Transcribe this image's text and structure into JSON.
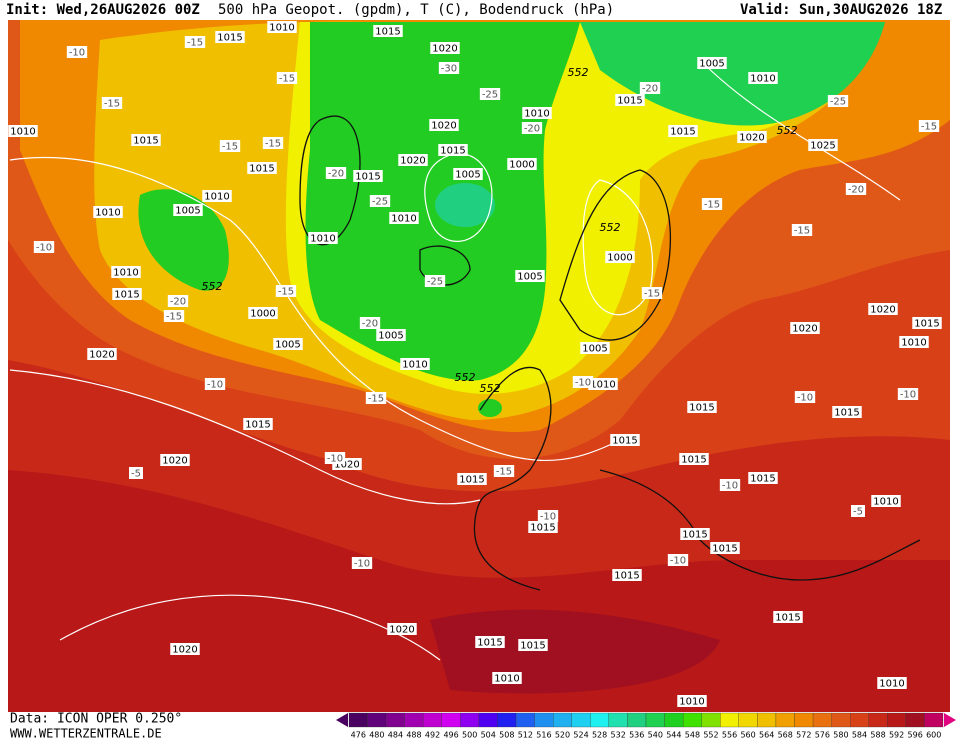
{
  "header": {
    "init": "Init: Wed,26AUG2026 00Z",
    "title": "500 hPa Geopot. (gpdm), T (C), Bodendruck (hPa)",
    "valid": "Valid: Sun,30AUG2026 18Z"
  },
  "footer": {
    "data": "Data: ICON OPER 0.250°",
    "site": "WWW.WETTERZENTRALE.DE"
  },
  "scale": {
    "labels": [
      476,
      480,
      484,
      488,
      492,
      496,
      500,
      504,
      508,
      512,
      516,
      520,
      524,
      528,
      532,
      536,
      540,
      544,
      548,
      552,
      556,
      560,
      564,
      568,
      572,
      576,
      580,
      584,
      588,
      592,
      596,
      600
    ],
    "colors": [
      "#4a0060",
      "#60007a",
      "#800090",
      "#a000b0",
      "#c000d0",
      "#d000f0",
      "#9000f0",
      "#5000f0",
      "#2020f0",
      "#2060f0",
      "#2090f0",
      "#20b0f0",
      "#20d0f0",
      "#20f0f0",
      "#20e0b0",
      "#20d080",
      "#20d050",
      "#20d020",
      "#40e000",
      "#80e000",
      "#f0f000",
      "#f0d800",
      "#f0c000",
      "#f0a000",
      "#f08800",
      "#e87010",
      "#e05818",
      "#d84018",
      "#c82818",
      "#b81818",
      "#a01020",
      "#c00060"
    ]
  },
  "map": {
    "pressure_labels": [
      1015,
      1010,
      1015,
      1020,
      1005,
      1010,
      1015,
      1010,
      1015,
      1015,
      1020,
      1010,
      1015,
      1020,
      1025,
      1020,
      1015,
      1000,
      1005,
      1015,
      1010,
      1010,
      1005,
      1010,
      1010,
      1000,
      1005,
      1010,
      1015,
      1000,
      1005,
      1005,
      1020,
      1020,
      1015,
      1010,
      1005,
      1010,
      1010,
      1020,
      1015,
      1015,
      1015,
      1015,
      1015,
      1020,
      1020,
      1015,
      1015,
      1010,
      1015,
      1015,
      1015,
      1015,
      1015,
      1020,
      1020,
      1015,
      1015,
      1010,
      1010,
      1010
    ],
    "temperature_labels": [
      -10,
      -15,
      -15,
      -15,
      -15,
      -15,
      -20,
      -25,
      -30,
      -25,
      -20,
      -20,
      -25,
      -15,
      -20,
      -15,
      -15,
      -10,
      -20,
      -15,
      -15,
      -25,
      -20,
      -15,
      -10,
      -15,
      -10,
      -10,
      -10,
      -15,
      -10,
      -5,
      -10,
      -10,
      -5,
      -10,
      -10
    ],
    "geopotential_labels": [
      552,
      552,
      552,
      552,
      552,
      552
    ]
  }
}
